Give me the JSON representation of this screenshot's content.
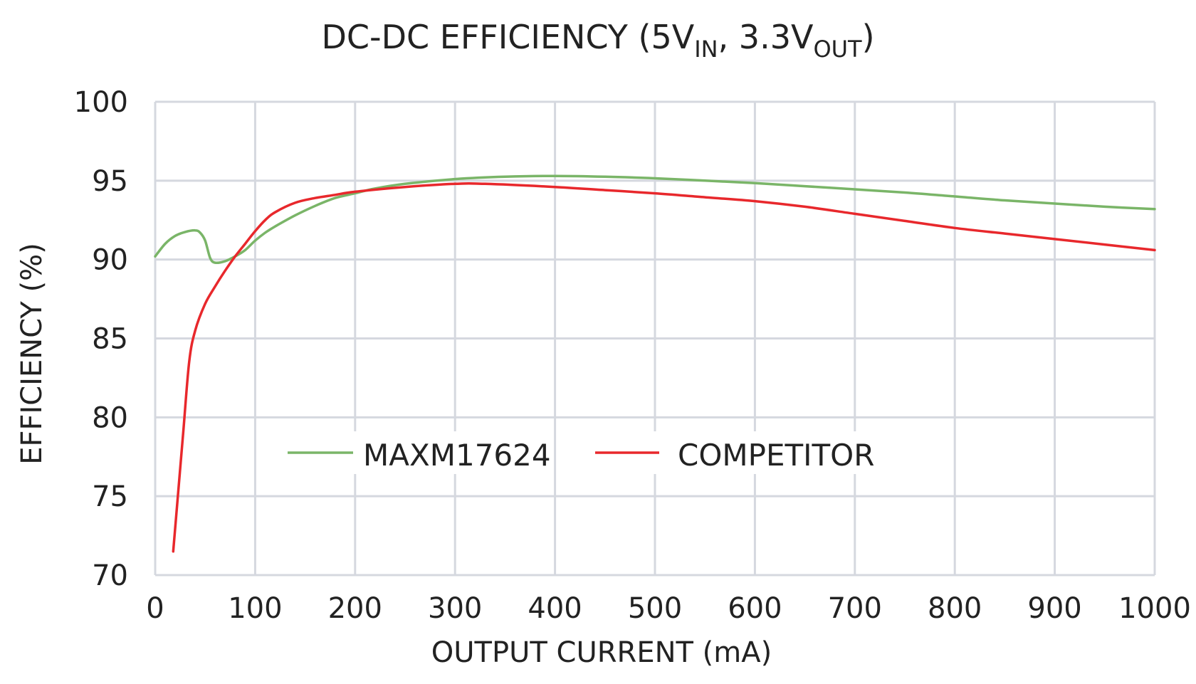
{
  "chart_data": {
    "type": "line",
    "title": {
      "main": "DC-DC EFFICIENCY (5V",
      "sub1": "IN",
      "mid": ", 3.3V",
      "sub2": "OUT",
      "end": ")"
    },
    "xlabel": "OUTPUT CURRENT (mA)",
    "ylabel": "EFFICIENCY (%)",
    "xlim": [
      0,
      1000
    ],
    "ylim": [
      70,
      100
    ],
    "x_ticks": [
      0,
      100,
      200,
      300,
      400,
      500,
      600,
      700,
      800,
      900,
      1000
    ],
    "y_ticks": [
      70,
      75,
      80,
      85,
      90,
      95,
      100
    ],
    "grid": true,
    "legend_position": "inside-lower-center",
    "series": [
      {
        "name": "MAXM17624",
        "color": "#7ab568",
        "points": [
          [
            0,
            90.2
          ],
          [
            10,
            91.0
          ],
          [
            20,
            91.5
          ],
          [
            30,
            91.75
          ],
          [
            40,
            91.85
          ],
          [
            45,
            91.7
          ],
          [
            50,
            91.2
          ],
          [
            55,
            90.1
          ],
          [
            60,
            89.8
          ],
          [
            70,
            89.9
          ],
          [
            80,
            90.2
          ],
          [
            90,
            90.6
          ],
          [
            100,
            91.2
          ],
          [
            110,
            91.7
          ],
          [
            120,
            92.1
          ],
          [
            140,
            92.8
          ],
          [
            160,
            93.4
          ],
          [
            180,
            93.9
          ],
          [
            200,
            94.2
          ],
          [
            220,
            94.5
          ],
          [
            250,
            94.8
          ],
          [
            300,
            95.1
          ],
          [
            350,
            95.25
          ],
          [
            400,
            95.3
          ],
          [
            450,
            95.25
          ],
          [
            500,
            95.15
          ],
          [
            550,
            95.0
          ],
          [
            600,
            94.85
          ],
          [
            650,
            94.65
          ],
          [
            700,
            94.45
          ],
          [
            750,
            94.25
          ],
          [
            800,
            94.0
          ],
          [
            850,
            93.75
          ],
          [
            900,
            93.55
          ],
          [
            950,
            93.35
          ],
          [
            1000,
            93.2
          ]
        ]
      },
      {
        "name": "COMPETITOR",
        "color": "#e8282c",
        "points": [
          [
            18,
            71.5
          ],
          [
            22,
            74.5
          ],
          [
            28,
            79.0
          ],
          [
            34,
            83.5
          ],
          [
            40,
            85.5
          ],
          [
            50,
            87.2
          ],
          [
            60,
            88.3
          ],
          [
            70,
            89.3
          ],
          [
            80,
            90.2
          ],
          [
            90,
            91.0
          ],
          [
            100,
            91.8
          ],
          [
            110,
            92.5
          ],
          [
            120,
            93.0
          ],
          [
            140,
            93.6
          ],
          [
            160,
            93.9
          ],
          [
            180,
            94.1
          ],
          [
            200,
            94.3
          ],
          [
            250,
            94.6
          ],
          [
            300,
            94.8
          ],
          [
            330,
            94.8
          ],
          [
            400,
            94.6
          ],
          [
            450,
            94.4
          ],
          [
            500,
            94.2
          ],
          [
            550,
            93.95
          ],
          [
            600,
            93.7
          ],
          [
            650,
            93.35
          ],
          [
            700,
            92.9
          ],
          [
            750,
            92.45
          ],
          [
            800,
            92.0
          ],
          [
            850,
            91.65
          ],
          [
            900,
            91.3
          ],
          [
            950,
            90.95
          ],
          [
            1000,
            90.6
          ]
        ]
      }
    ]
  }
}
